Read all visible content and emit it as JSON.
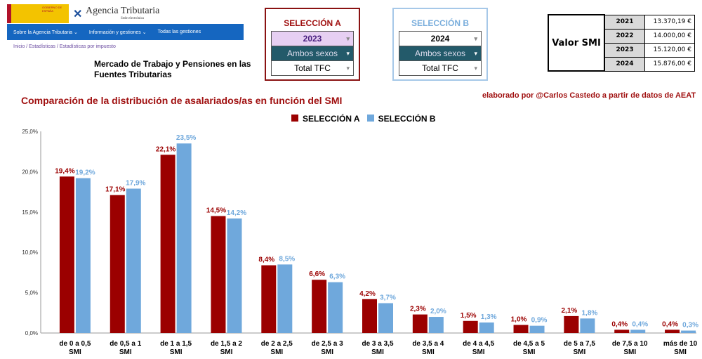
{
  "header": {
    "brand": "Agencia Tributaria",
    "brand_sub": "Sede electrónica",
    "gov": "GOBIERNO DE ESPAÑA",
    "nav": [
      "Sobre la Agencia Tributaria ⌄",
      "Información y gestiones ⌄",
      "Todas las gestiones"
    ],
    "breadcrumb": "Inicio / Estadísticas / Estadísticas por impuesto",
    "page_title": "Mercado de Trabajo y Pensiones en las Fuentes Tributarias"
  },
  "selA": {
    "title": "SELECCIÓN A",
    "year": "2023",
    "sex": "Ambos sexos",
    "type": "Total TFC"
  },
  "selB": {
    "title": "SELECCIÓN B",
    "year": "2024",
    "sex": "Ambos sexos",
    "type": "Total TFC"
  },
  "smi": {
    "label": "Valor SMI",
    "rows": [
      {
        "year": "2021",
        "value": "13.370,19 €"
      },
      {
        "year": "2022",
        "value": "14.000,00 €"
      },
      {
        "year": "2023",
        "value": "15.120,00 €"
      },
      {
        "year": "2024",
        "value": "15.876,00 €"
      }
    ]
  },
  "credit": "elaborado por @Carlos Castedo a partir de datos de AEAT",
  "colors": {
    "a": "#9b0000",
    "b": "#6fa8dc"
  },
  "chart_data": {
    "type": "bar",
    "title": "Comparación de la distribución de asalariados/as en función del SMI",
    "categories": [
      "de 0 a 0,5 SMI",
      "de 0,5 a 1 SMI",
      "de 1 a 1,5 SMI",
      "de 1,5 a 2 SMI",
      "de 2 a 2,5 SMI",
      "de 2,5 a 3 SMI",
      "de 3 a 3,5 SMI",
      "de 3,5 a 4 SMI",
      "de 4 a 4,5 SMI",
      "de 4,5 a 5 SMI",
      "de 5 a 7,5 SMI",
      "de 7,5 a 10 SMI",
      "más de 10 SMI"
    ],
    "series": [
      {
        "name": "SELECCIÓN A",
        "values": [
          19.4,
          17.1,
          22.1,
          14.5,
          8.4,
          6.6,
          4.2,
          2.3,
          1.5,
          1.0,
          2.1,
          0.4,
          0.4
        ]
      },
      {
        "name": "SELECCIÓN B",
        "values": [
          19.2,
          17.9,
          23.5,
          14.2,
          8.5,
          6.3,
          3.7,
          2.0,
          1.3,
          0.9,
          1.8,
          0.4,
          0.3
        ]
      }
    ],
    "yticks": [
      "0,0%",
      "5,0%",
      "10,0%",
      "15,0%",
      "20,0%",
      "25,0%"
    ],
    "ylim": [
      0,
      25
    ],
    "legend": "top-center",
    "grid": false
  }
}
